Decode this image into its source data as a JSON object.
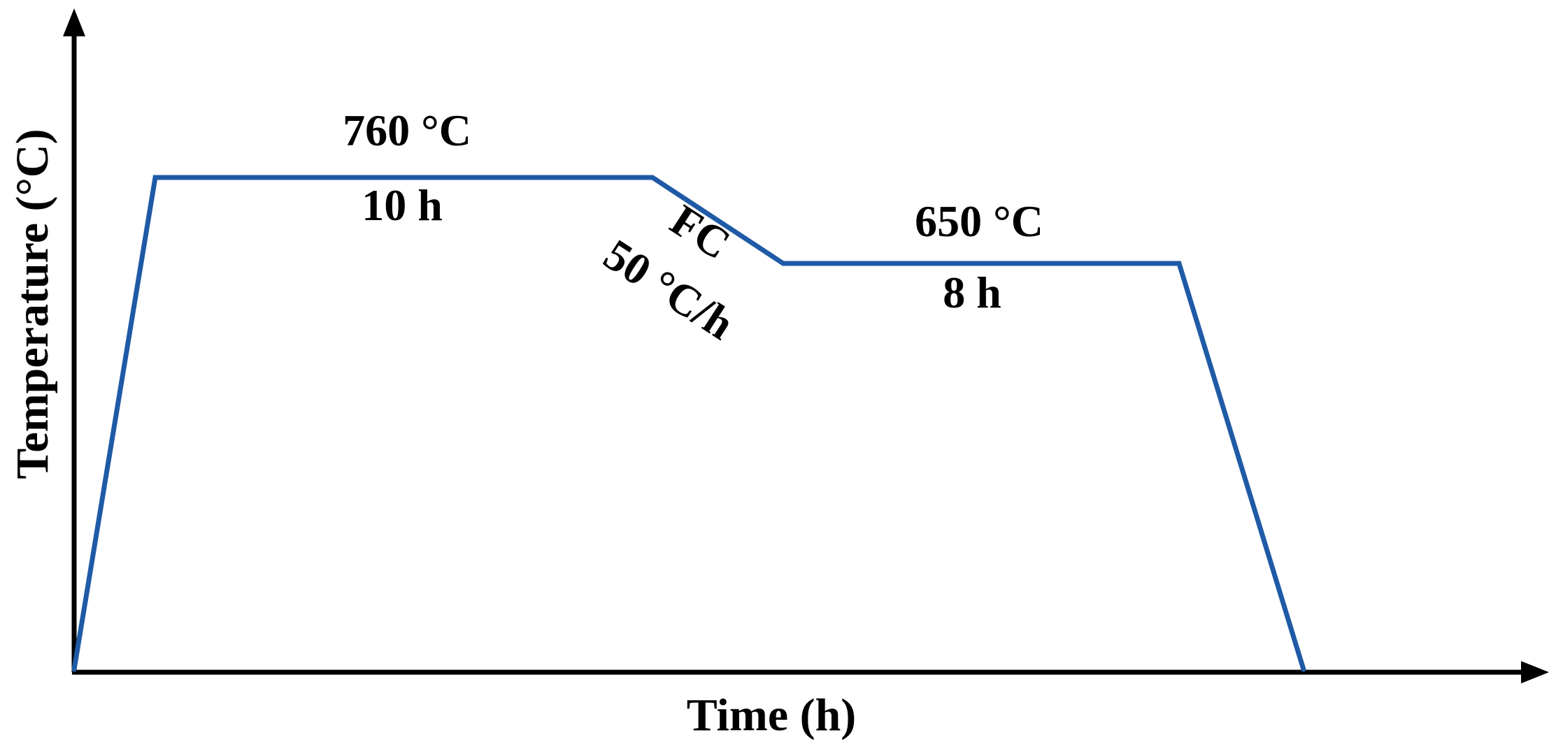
{
  "axes": {
    "x_label": "Time (h)",
    "y_label": "Temperature (°C)",
    "axis_color": "#000000"
  },
  "profile": {
    "line_color": "#1f5aa6",
    "stages": [
      {
        "type": "heating"
      },
      {
        "type": "hold",
        "temperature": "760 °C",
        "duration": "10 h"
      },
      {
        "type": "furnace-cool",
        "method": "FC",
        "rate": "50 °C/h"
      },
      {
        "type": "hold",
        "temperature": "650 °C",
        "duration": "8 h"
      },
      {
        "type": "cooling"
      }
    ]
  },
  "labels": {
    "hold1_temp": "760 °C",
    "hold1_time": "10 h",
    "cool_method": "FC",
    "cool_rate": "50 °C/h",
    "hold2_temp": "650 °C",
    "hold2_time": "8 h"
  }
}
